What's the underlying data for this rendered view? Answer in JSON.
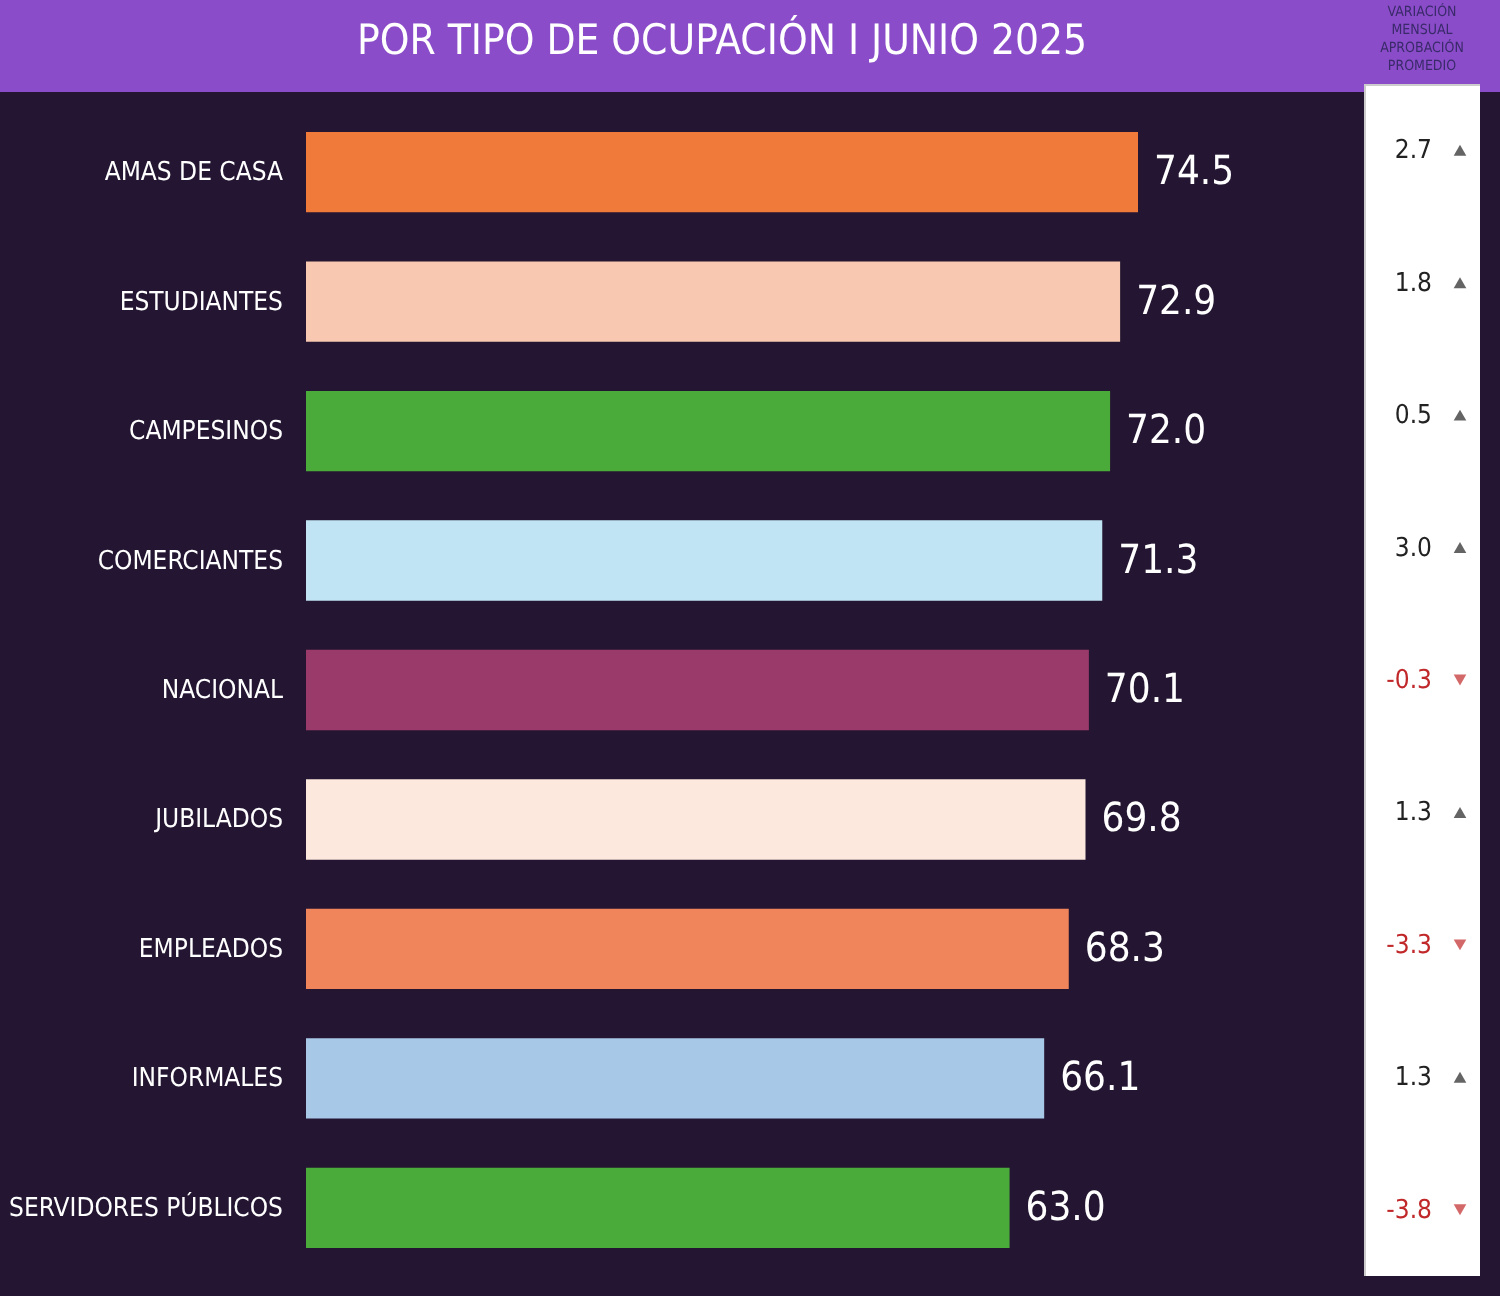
{
  "chart_data": [
    {
      "type": "bar",
      "orientation": "horizontal",
      "title": "POR TIPO DE OCUPACIÓN I JUNIO 2025",
      "categories": [
        "AMAS DE CASA",
        "ESTUDIANTES",
        "CAMPESINOS",
        "COMERCIANTES",
        "NACIONAL",
        "JUBILADOS",
        "EMPLEADOS",
        "INFORMALES",
        "SERVIDORES PÚBLICOS"
      ],
      "values": [
        74.5,
        72.9,
        72.0,
        71.3,
        70.1,
        69.8,
        68.3,
        66.1,
        63.0
      ],
      "value_labels": [
        "74.5",
        "72.9",
        "72.0",
        "71.3",
        "70.1",
        "69.8",
        "68.3",
        "66.1",
        "63.0"
      ],
      "colors": [
        "#f07a3a",
        "#f8c8b0",
        "#4aaa3a",
        "#c0e4f4",
        "#9a3a6a",
        "#fce8dc",
        "#f0845a",
        "#a8c8e8",
        "#4aaa3a"
      ],
      "tick_labels": "y"
    },
    {
      "type": "other",
      "title": "VARIACIÓN MENSUAL APROBACIÓN PROMEDIO",
      "categories": [
        null,
        null,
        null,
        null,
        null,
        null,
        null,
        null,
        null
      ],
      "values": [
        2.7,
        1.8,
        0.5,
        3.0,
        -0.3,
        1.3,
        -3.3,
        1.3,
        -3.8
      ],
      "value_labels": [
        "2.7",
        "1.8",
        "0.5",
        "3.0",
        "-0.3",
        "1.3",
        "-3.3",
        "1.3",
        "-3.8"
      ],
      "colors": [
        "#1a3a8a",
        "#1a3a8a",
        "#1a3a8a",
        "#1a3a8a",
        "#c0282a",
        "#1a3a8a",
        "#c0282a",
        "#1a3a8a",
        "#c0282a"
      ]
    }
  ]
}
